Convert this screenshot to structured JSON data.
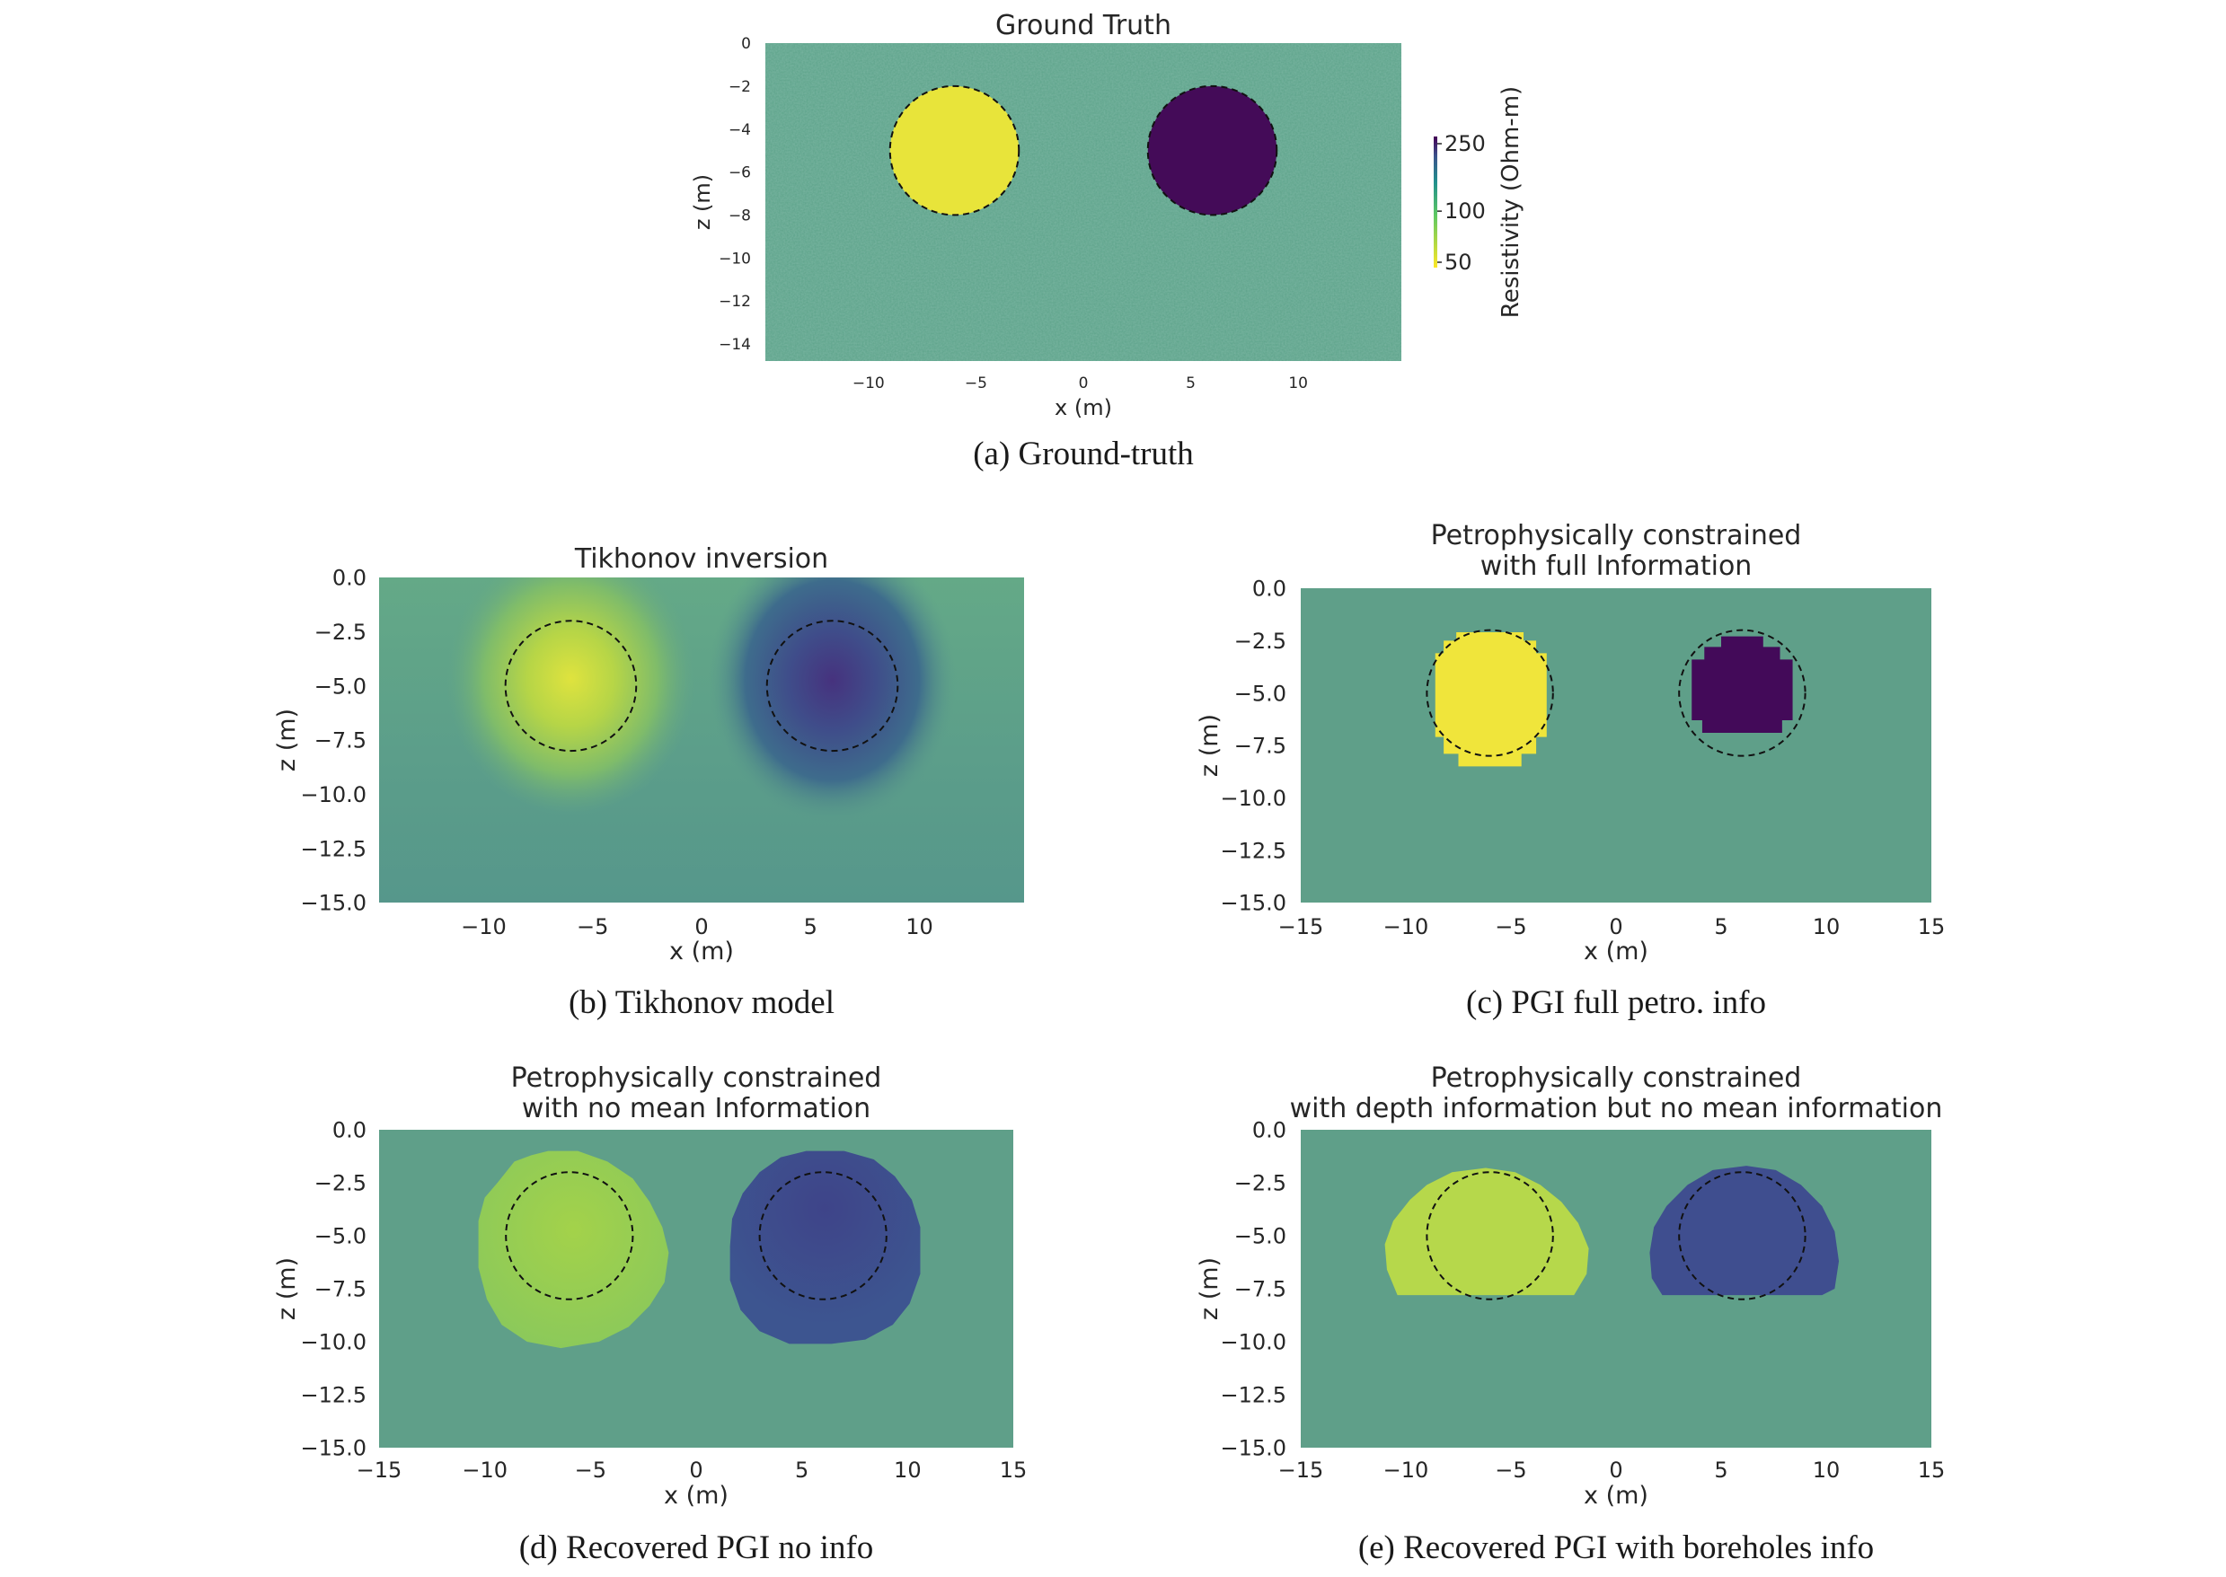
{
  "figure": {
    "colormap": "viridis_r",
    "colors": {
      "background_resistivity": "#5da38a",
      "conductive": "#e8e43a",
      "resistive": "#440b58",
      "outline": "#111111"
    }
  },
  "chart_data": [
    {
      "id": "a",
      "type": "heatmap",
      "title": "Ground Truth",
      "caption": "(a) Ground-truth",
      "xlabel": "x (m)",
      "ylabel": "z (m)",
      "xlim": [
        -14.8,
        14.8
      ],
      "ylim": [
        -14.8,
        0
      ],
      "xticks": [
        -10,
        -5,
        0,
        5,
        10
      ],
      "xtick_labels": [
        "−10",
        "−5",
        "0",
        "5",
        "10"
      ],
      "yticks": [
        0,
        -2,
        -4,
        -6,
        -8,
        -10,
        -12,
        -14
      ],
      "ytick_labels": [
        "0",
        "−2",
        "−4",
        "−6",
        "−8",
        "−10",
        "−12",
        "−14"
      ],
      "true_bodies": [
        {
          "name": "conductive-cylinder",
          "center": [
            -6,
            -5
          ],
          "radius": 3,
          "resistivity_ohm_m": 50
        },
        {
          "name": "resistive-cylinder",
          "center": [
            6,
            -5
          ],
          "radius": 3,
          "resistivity_ohm_m": 250
        }
      ],
      "background_resistivity_ohm_m": 100,
      "colorbar": {
        "label": "Resistivity (Ohm-m)",
        "ticks": [
          250,
          100,
          50
        ],
        "tick_labels": [
          "250",
          "100",
          "50"
        ]
      }
    },
    {
      "id": "b",
      "type": "heatmap",
      "title": "Tikhonov inversion",
      "caption": "(b) Tikhonov model",
      "xlabel": "x (m)",
      "ylabel": "z (m)",
      "xlim": [
        -14.8,
        14.8
      ],
      "ylim": [
        -15,
        0
      ],
      "xticks": [
        -10,
        -5,
        0,
        5,
        10
      ],
      "xtick_labels": [
        "−10",
        "−5",
        "0",
        "5",
        "10"
      ],
      "yticks": [
        0,
        -2.5,
        -5,
        -7.5,
        -10,
        -12.5,
        -15
      ],
      "ytick_labels": [
        "0.0",
        "−2.5",
        "−5.0",
        "−7.5",
        "−10.0",
        "−12.5",
        "−15.0"
      ],
      "true_bodies": [
        {
          "name": "conductive-cylinder",
          "center": [
            -6,
            -5
          ],
          "radius": 3
        },
        {
          "name": "resistive-cylinder",
          "center": [
            6,
            -5
          ],
          "radius": 3
        }
      ]
    },
    {
      "id": "c",
      "type": "heatmap",
      "title": [
        "Petrophysically constrained",
        "with full Information"
      ],
      "caption": "(c) PGI full petro. info",
      "xlabel": "x (m)",
      "ylabel": "z (m)",
      "xlim": [
        -15,
        15
      ],
      "ylim": [
        -15,
        0
      ],
      "xticks": [
        -15,
        -10,
        -5,
        0,
        5,
        10,
        15
      ],
      "xtick_labels": [
        "−15",
        "−10",
        "−5",
        "0",
        "5",
        "10",
        "15"
      ],
      "yticks": [
        0,
        -2.5,
        -5,
        -7.5,
        -10,
        -12.5,
        -15
      ],
      "ytick_labels": [
        "0.0",
        "−2.5",
        "−5.0",
        "−7.5",
        "−10.0",
        "−12.5",
        "−15.0"
      ],
      "true_bodies": [
        {
          "name": "conductive-cylinder",
          "center": [
            -6,
            -5
          ],
          "radius": 3
        },
        {
          "name": "resistive-cylinder",
          "center": [
            6,
            -5
          ],
          "radius": 3
        }
      ]
    },
    {
      "id": "d",
      "type": "heatmap",
      "title": [
        "Petrophysically constrained",
        "with no mean Information"
      ],
      "caption": "(d) Recovered PGI no info",
      "xlabel": "x (m)",
      "ylabel": "z (m)",
      "xlim": [
        -15,
        15
      ],
      "ylim": [
        -15,
        0
      ],
      "xticks": [
        -15,
        -10,
        -5,
        0,
        5,
        10,
        15
      ],
      "xtick_labels": [
        "−15",
        "−10",
        "−5",
        "0",
        "5",
        "10",
        "15"
      ],
      "yticks": [
        0,
        -2.5,
        -5,
        -7.5,
        -10,
        -12.5,
        -15
      ],
      "ytick_labels": [
        "0.0",
        "−2.5",
        "−5.0",
        "−7.5",
        "−10.0",
        "−12.5",
        "−15.0"
      ],
      "true_bodies": [
        {
          "name": "conductive-cylinder",
          "center": [
            -6,
            -5
          ],
          "radius": 3
        },
        {
          "name": "resistive-cylinder",
          "center": [
            6,
            -5
          ],
          "radius": 3
        }
      ]
    },
    {
      "id": "e",
      "type": "heatmap",
      "title": [
        "Petrophysically constrained",
        "with depth information but no mean information"
      ],
      "caption": "(e) Recovered PGI with boreholes info",
      "xlabel": "x (m)",
      "ylabel": "z (m)",
      "xlim": [
        -15,
        15
      ],
      "ylim": [
        -15,
        0
      ],
      "xticks": [
        -15,
        -10,
        -5,
        0,
        5,
        10,
        15
      ],
      "xtick_labels": [
        "−15",
        "−10",
        "−5",
        "0",
        "5",
        "10",
        "15"
      ],
      "yticks": [
        0,
        -2.5,
        -5,
        -7.5,
        -10,
        -12.5,
        -15
      ],
      "ytick_labels": [
        "0.0",
        "−2.5",
        "−5.0",
        "−7.5",
        "−10.0",
        "−12.5",
        "−15.0"
      ],
      "true_bodies": [
        {
          "name": "conductive-cylinder",
          "center": [
            -6,
            -5
          ],
          "radius": 3
        },
        {
          "name": "resistive-cylinder",
          "center": [
            6,
            -5
          ],
          "radius": 3
        }
      ]
    }
  ]
}
